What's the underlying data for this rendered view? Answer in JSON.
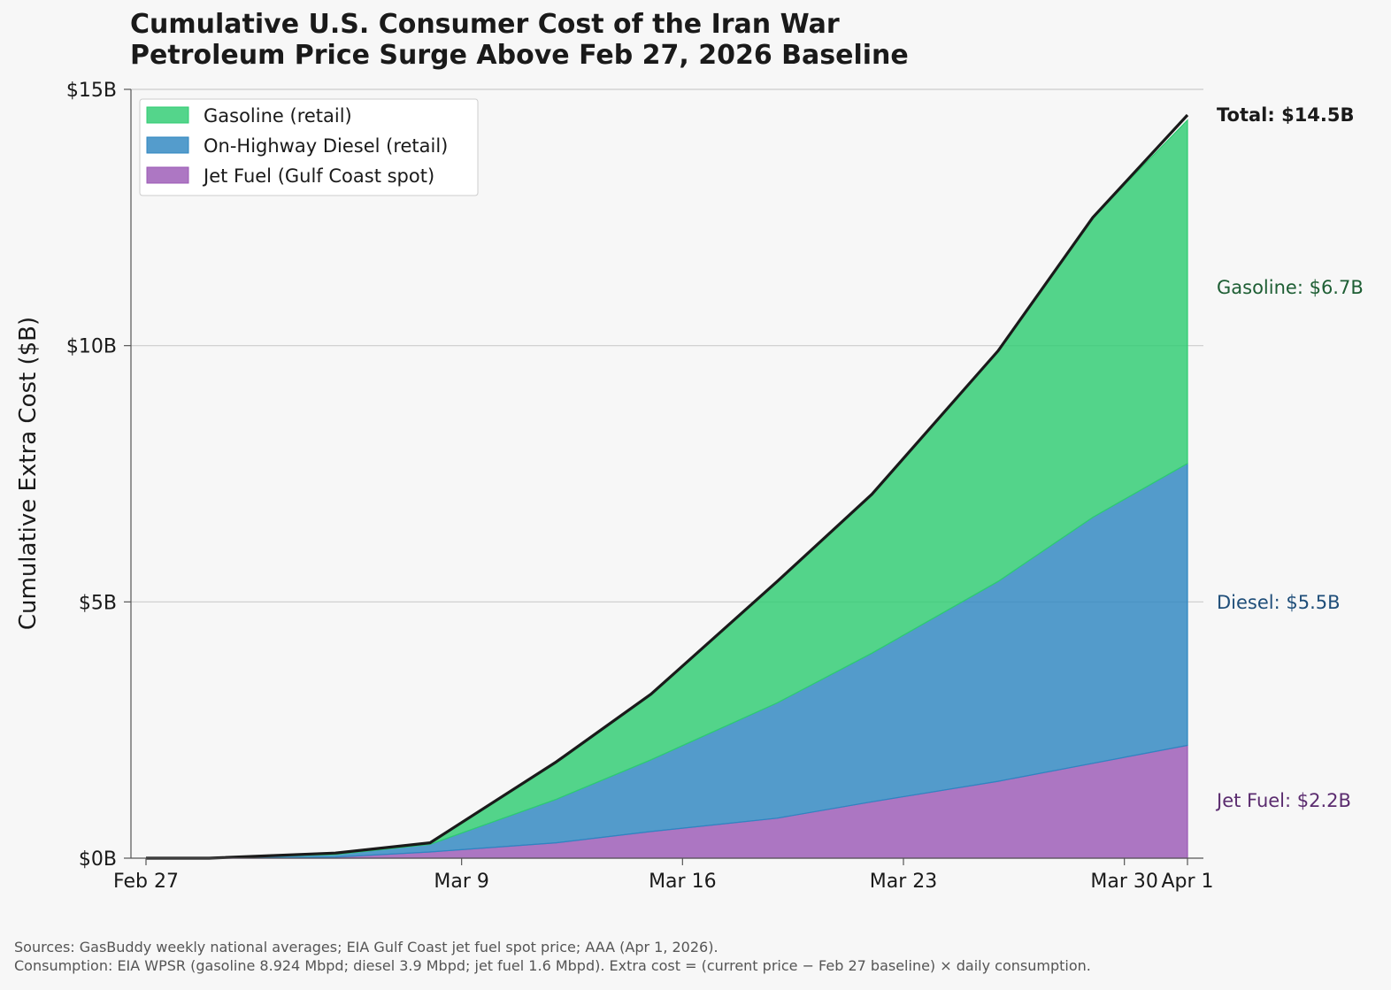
{
  "chart_data": {
    "type": "area",
    "stacked": true,
    "title": "Cumulative U.S. Consumer Cost of the Iran War",
    "subtitle": "Petroleum Price Surge Above Feb 27, 2026 Baseline",
    "xlabel": "",
    "ylabel": "Cumulative Extra Cost ($B)",
    "x": [
      "2026-02-27",
      "2026-03-01",
      "2026-03-05",
      "2026-03-08",
      "2026-03-12",
      "2026-03-15",
      "2026-03-19",
      "2026-03-22",
      "2026-03-26",
      "2026-03-29",
      "2026-04-01"
    ],
    "x_ticks": [
      {
        "date": "2026-02-27",
        "label": "Feb 27"
      },
      {
        "date": "2026-03-09",
        "label": "Mar 9"
      },
      {
        "date": "2026-03-16",
        "label": "Mar 16"
      },
      {
        "date": "2026-03-23",
        "label": "Mar 23"
      },
      {
        "date": "2026-03-30",
        "label": "Mar 30"
      },
      {
        "date": "2026-04-01",
        "label": "Apr 1"
      }
    ],
    "xlim": [
      "2026-02-27",
      "2026-04-01"
    ],
    "ylim": [
      0,
      15
    ],
    "y_ticks": [
      {
        "value": 0,
        "label": "$0B"
      },
      {
        "value": 5,
        "label": "$5B"
      },
      {
        "value": 10,
        "label": "$10B"
      },
      {
        "value": 15,
        "label": "$15B"
      }
    ],
    "grid": "horizontal",
    "legend_position": "top-left",
    "series": [
      {
        "name": "Jet Fuel (Gulf Coast spot)",
        "color": "#9b59b6",
        "values": [
          0,
          0,
          0.02,
          0.12,
          0.3,
          0.52,
          0.78,
          1.1,
          1.5,
          1.85,
          2.2
        ]
      },
      {
        "name": "On-Highway Diesel (retail)",
        "color": "#2e86c1",
        "values": [
          0,
          0,
          0.05,
          0.15,
          0.85,
          1.4,
          2.25,
          2.9,
          3.9,
          4.8,
          5.5
        ]
      },
      {
        "name": "Gasoline (retail)",
        "color": "#2ecc71",
        "values": [
          0,
          0,
          0.03,
          0.03,
          0.73,
          1.28,
          2.37,
          3.1,
          4.5,
          5.85,
          6.7
        ]
      }
    ],
    "total": [
      0,
      0,
      0.1,
      0.3,
      1.88,
      3.2,
      5.4,
      7.1,
      9.9,
      12.5,
      14.5
    ],
    "end_labels": [
      {
        "text": "Total: $14.5B",
        "color": "#1a1a1a",
        "bold": true
      },
      {
        "text": "Gasoline: $6.7B",
        "color": "#1e5e34",
        "bold": false
      },
      {
        "text": "Diesel: $5.5B",
        "color": "#1f4e79",
        "bold": false
      },
      {
        "text": "Jet Fuel: $2.2B",
        "color": "#5b2c6f",
        "bold": false
      }
    ],
    "footer": [
      "Sources: GasBuddy weekly national averages; EIA Gulf Coast jet fuel spot price; AAA (Apr 1, 2026).",
      "Consumption: EIA WPSR (gasoline 8.924 Mbpd; diesel 3.9 Mbpd; jet fuel 1.6 Mbpd). Extra cost = (current price − Feb 27 baseline) × daily consumption."
    ]
  }
}
